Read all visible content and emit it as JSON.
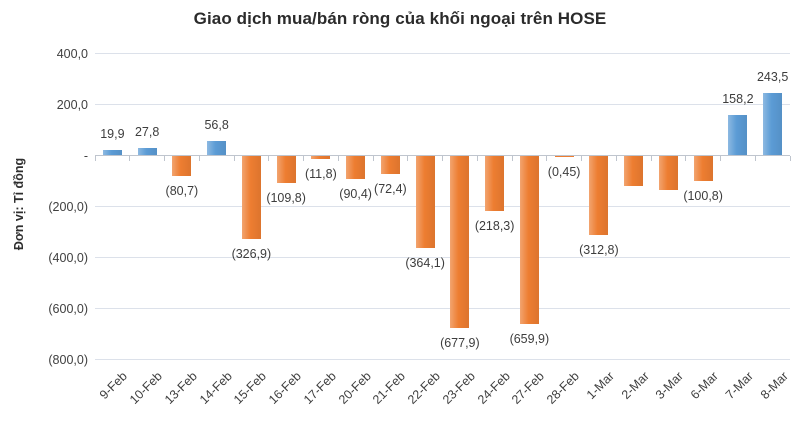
{
  "chart_data": {
    "type": "bar",
    "title": "Giao dịch mua/bán ròng của khối ngoại trên HOSE",
    "ylabel": "Đơn vị: Tỉ đồng",
    "xlabel": "",
    "legend": "none",
    "grid": true,
    "ylim": [
      -800,
      400
    ],
    "categories": [
      "9-Feb",
      "10-Feb",
      "13-Feb",
      "14-Feb",
      "15-Feb",
      "16-Feb",
      "17-Feb",
      "20-Feb",
      "21-Feb",
      "22-Feb",
      "23-Feb",
      "24-Feb",
      "27-Feb",
      "28-Feb",
      "1-Mar",
      "2-Mar",
      "3-Mar",
      "6-Mar",
      "7-Mar",
      "8-Mar"
    ],
    "values": [
      19.9,
      27.8,
      -80.7,
      56.8,
      -326.9,
      -109.8,
      -11.8,
      -90.4,
      -72.4,
      -364.1,
      -677.9,
      -218.3,
      -659.9,
      -0.45,
      -312.8,
      -119.0,
      -135.0,
      -100.8,
      158.2,
      243.5
    ],
    "data_labels": [
      "19,9",
      "27,8",
      "(80,7)",
      "56,8",
      "(326,9)",
      "(109,8)",
      "(11,8)",
      "(90,4)",
      "(72,4)",
      "(364,1)",
      "(677,9)",
      "(218,3)",
      "(659,9)",
      "(0,45)",
      "(312,8)",
      "",
      "",
      "(100,8)",
      "158,2",
      "243,5"
    ],
    "estimated_value_indexes": [
      15,
      16
    ],
    "y_ticks": [
      {
        "value": 400,
        "label": "400,0"
      },
      {
        "value": 200,
        "label": "200,0"
      },
      {
        "value": 0,
        "label": "-"
      },
      {
        "value": -200,
        "label": "(200,0)"
      },
      {
        "value": -400,
        "label": "(400,0)"
      },
      {
        "value": -600,
        "label": "(600,0)"
      },
      {
        "value": -800,
        "label": "(800,0)"
      }
    ],
    "colors": {
      "positive": "#5B9BD5",
      "negative": "#ED7D31",
      "gridline": "#DCE1EA",
      "axis": "#BFC5CE",
      "text": "#404040",
      "title": "#2B2B2B",
      "background": "#FFFFFF"
    }
  }
}
